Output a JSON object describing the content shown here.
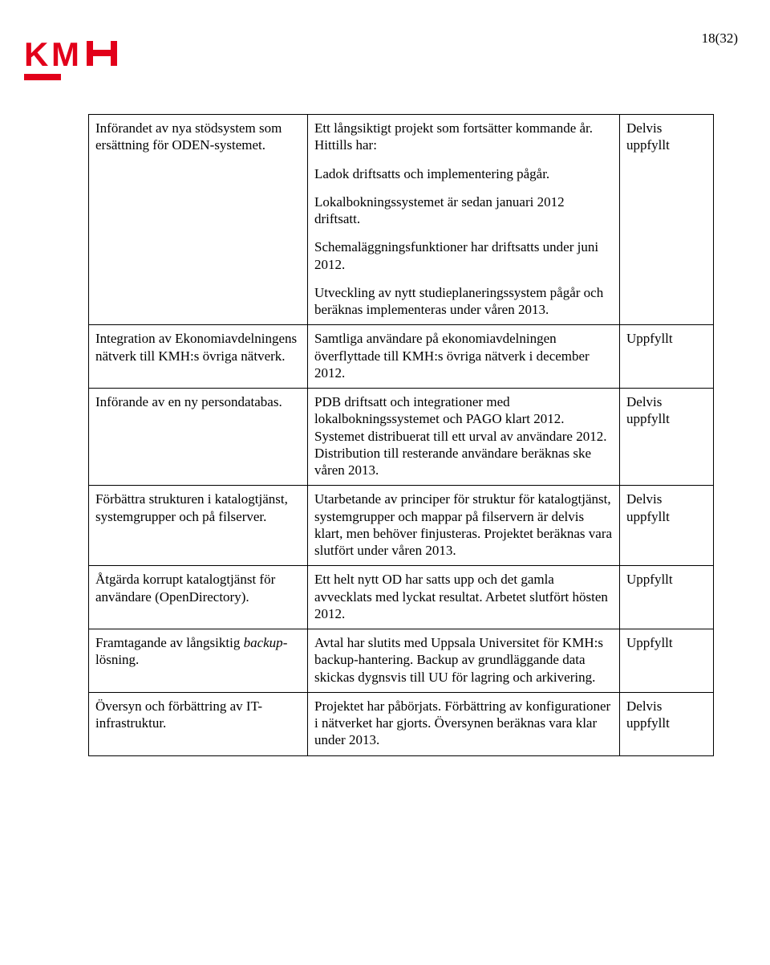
{
  "page_number": "18(32)",
  "logo": {
    "letters": "KMH",
    "color": "#e2001a"
  },
  "rows": [
    {
      "activity": "Införandet av nya stödsystem som ersättning för ODEN-systemet.",
      "result_paragraphs": [
        "Ett långsiktigt projekt som fortsätter kommande år. Hittills har:",
        "Ladok driftsatts och implementering pågår.",
        "Lokalbokningssystemet är sedan januari 2012 driftsatt.",
        "Schemaläggningsfunktioner har driftsatts under juni 2012.",
        "Utveckling av nytt studieplaneringssystem pågår och beräknas implementeras under våren 2013."
      ],
      "status": "Delvis uppfyllt"
    },
    {
      "activity": "Integration av Ekonomiavdelningens nätverk till KMH:s övriga nätverk.",
      "result_paragraphs": [
        "Samtliga användare på ekonomiavdelningen överflyttade till KMH:s övriga nätverk i december 2012."
      ],
      "status": "Uppfyllt"
    },
    {
      "activity": "Införande av en ny persondatabas.",
      "result_paragraphs": [
        "PDB driftsatt och integrationer med lokalbokningssystemet och PAGO klart 2012. Systemet distribuerat till ett urval av användare 2012. Distribution till resterande användare beräknas ske våren 2013."
      ],
      "status": "Delvis uppfyllt"
    },
    {
      "activity": "Förbättra strukturen i katalogtjänst, systemgrupper och på filserver.",
      "result_paragraphs": [
        "Utarbetande av principer för struktur för katalogtjänst, systemgrupper och mappar på filservern är delvis klart, men behöver finjusteras. Projektet beräknas vara slutfört under våren 2013."
      ],
      "status": "Delvis uppfyllt"
    },
    {
      "activity": "Åtgärda korrupt katalogtjänst för användare (OpenDirectory).",
      "result_paragraphs": [
        "Ett helt nytt OD har satts upp och det gamla avvecklats med lyckat resultat. Arbetet slutfört hösten 2012."
      ],
      "status": "Uppfyllt"
    },
    {
      "activity_html": "Framtagande av långsiktig <span class=\"italic\">backup</span>-lösning.",
      "result_paragraphs": [
        "Avtal har slutits med Uppsala Universitet för KMH:s backup-hantering. Backup av grundläggande data skickas dygnsvis till UU för lagring och arkivering."
      ],
      "status": "Uppfyllt"
    },
    {
      "activity": "Översyn och förbättring av IT-infrastruktur.",
      "result_paragraphs": [
        "Projektet har påbörjats. Förbättring av konfigurationer i nätverket har gjorts. Översynen beräknas vara klar under 2013."
      ],
      "status": "Delvis uppfyllt"
    }
  ]
}
